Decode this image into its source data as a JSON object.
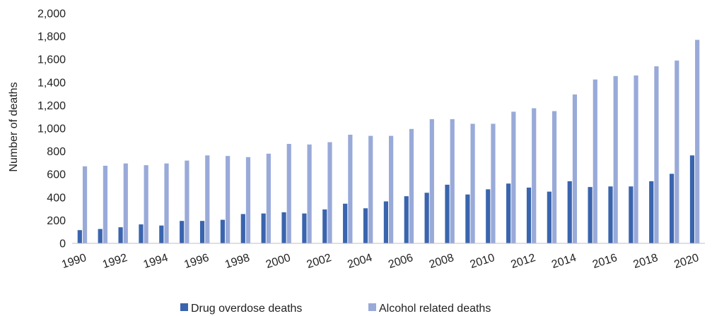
{
  "chart_data": {
    "type": "bar",
    "title": "",
    "xlabel": "",
    "ylabel": "Number of deaths",
    "ylim": [
      0,
      2000
    ],
    "y_ticks": [
      "0",
      "200",
      "400",
      "600",
      "800",
      "1,000",
      "1,200",
      "1,400",
      "1,600",
      "1,800",
      "2,000"
    ],
    "x_tick_labels": [
      "1990",
      "1992",
      "1994",
      "1996",
      "1998",
      "2000",
      "2002",
      "2004",
      "2006",
      "2008",
      "2010",
      "2012",
      "2014",
      "2016",
      "2018",
      "2020"
    ],
    "categories": [
      "1990",
      "1991",
      "1992",
      "1993",
      "1994",
      "1995",
      "1996",
      "1997",
      "1998",
      "1999",
      "2000",
      "2001",
      "2002",
      "2003",
      "2004",
      "2005",
      "2006",
      "2007",
      "2008",
      "2009",
      "2010",
      "2011",
      "2012",
      "2013",
      "2014",
      "2015",
      "2016",
      "2017",
      "2018",
      "2019",
      "2020"
    ],
    "grid": "none",
    "legend_position": "bottom",
    "colors": {
      "drug": "#3a64ad",
      "alcohol": "#99aad9",
      "axis": "#bfbfbf"
    },
    "series": [
      {
        "name": "Drug overdose deaths",
        "values": [
          115,
          125,
          140,
          165,
          155,
          195,
          195,
          205,
          255,
          260,
          270,
          260,
          295,
          345,
          305,
          365,
          410,
          440,
          510,
          425,
          470,
          520,
          485,
          450,
          540,
          490,
          495,
          495,
          540,
          605,
          765
        ]
      },
      {
        "name": "Alcohol related deaths",
        "values": [
          670,
          675,
          695,
          680,
          695,
          720,
          765,
          760,
          750,
          780,
          865,
          860,
          880,
          945,
          935,
          935,
          995,
          1080,
          1080,
          1040,
          1040,
          1145,
          1175,
          1150,
          1295,
          1425,
          1455,
          1460,
          1540,
          1590,
          1770
        ]
      }
    ]
  }
}
